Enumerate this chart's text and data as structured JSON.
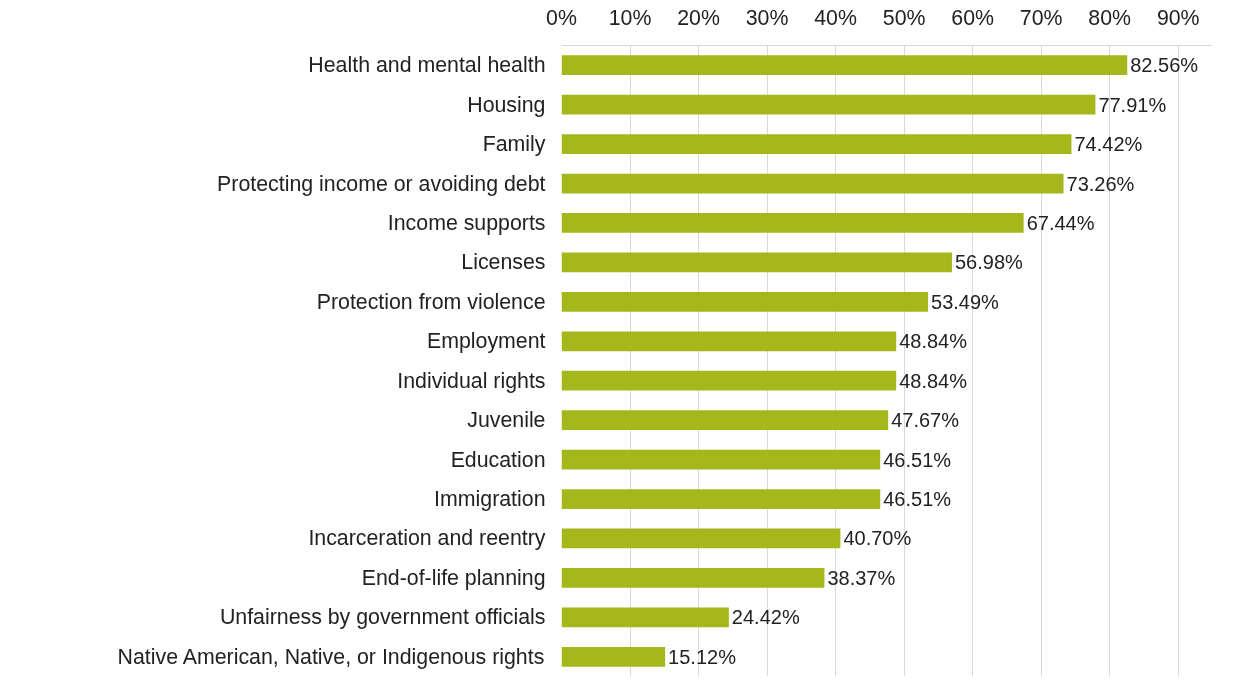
{
  "chart_data": {
    "type": "bar",
    "orientation": "horizontal",
    "categories": [
      "Health and mental health",
      "Housing",
      "Family",
      "Protecting income or avoiding debt",
      "Income supports",
      "Licenses",
      "Protection from violence",
      "Employment",
      "Individual rights",
      "Juvenile",
      "Education",
      "Immigration",
      "Incarceration and reentry",
      "End-of-life planning",
      "Unfairness by government officials",
      "Native American, Native, or Indigenous rights"
    ],
    "values": [
      82.56,
      77.91,
      74.42,
      73.26,
      67.44,
      56.98,
      53.49,
      48.84,
      48.84,
      47.67,
      46.51,
      46.51,
      40.7,
      38.37,
      24.42,
      15.12
    ],
    "value_labels": [
      "82.56%",
      "77.91%",
      "74.42%",
      "73.26%",
      "67.44%",
      "56.98%",
      "53.49%",
      "48.84%",
      "48.84%",
      "47.67%",
      "46.51%",
      "46.51%",
      "40.70%",
      "38.37%",
      "24.42%",
      "15.12%"
    ],
    "color": "#a4b81c",
    "xlim": [
      0,
      95
    ],
    "xticks": [
      {
        "value": 0,
        "label": "0%"
      },
      {
        "value": 10,
        "label": "10%"
      },
      {
        "value": 20,
        "label": "20%"
      },
      {
        "value": 30,
        "label": "30%"
      },
      {
        "value": 40,
        "label": "40%"
      },
      {
        "value": 50,
        "label": "50%"
      },
      {
        "value": 60,
        "label": "60%"
      },
      {
        "value": 70,
        "label": "70%"
      },
      {
        "value": 80,
        "label": "80%"
      },
      {
        "value": 90,
        "label": "90%"
      }
    ],
    "grid": "x"
  }
}
